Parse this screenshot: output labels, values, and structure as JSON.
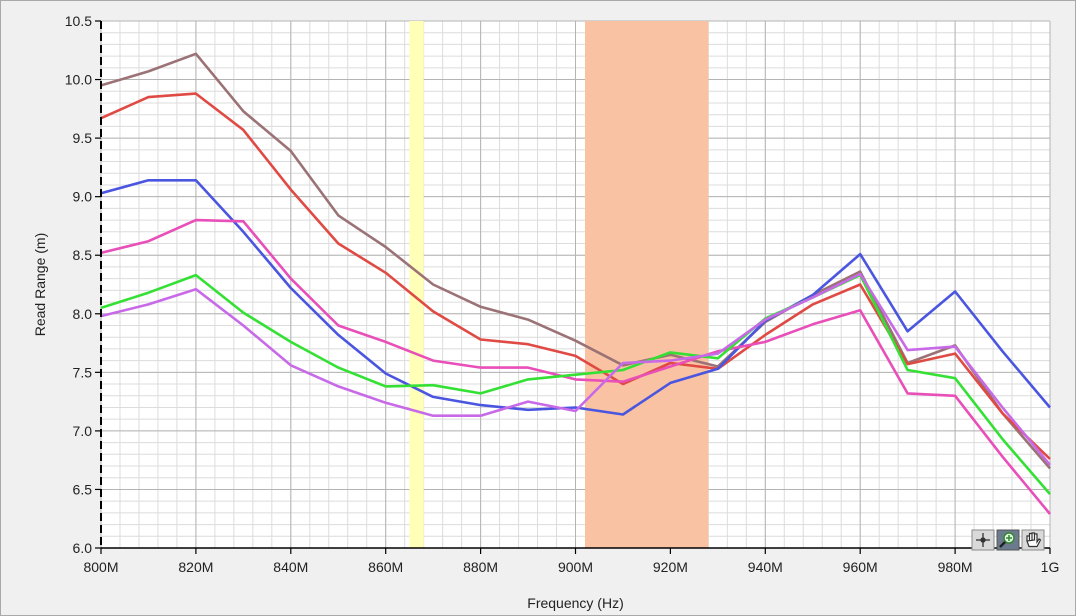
{
  "chart_data": {
    "type": "line",
    "xlabel": "Frequency (Hz)",
    "ylabel": "Read Range (m)",
    "xlim": [
      800,
      1000
    ],
    "ylim": [
      6.0,
      10.5
    ],
    "x_tick_values": [
      800,
      820,
      840,
      860,
      880,
      900,
      920,
      940,
      960,
      980,
      1000
    ],
    "x_tick_labels": [
      "800M",
      "820M",
      "840M",
      "860M",
      "880M",
      "900M",
      "920M",
      "940M",
      "960M",
      "980M",
      "1G"
    ],
    "y_tick_values": [
      6.0,
      6.5,
      7.0,
      7.5,
      8.0,
      8.5,
      9.0,
      9.5,
      10.0,
      10.5
    ],
    "y_tick_labels": [
      "6.0",
      "6.5",
      "7.0",
      "7.5",
      "8.0",
      "8.5",
      "9.0",
      "9.5",
      "10.0",
      "10.5"
    ],
    "grid": true,
    "bands": [
      {
        "x_from": 865,
        "x_to": 868,
        "color": "#ffffb8"
      },
      {
        "x_from": 902,
        "x_to": 928,
        "color": "#f9c3a3"
      }
    ],
    "x": [
      800,
      810,
      820,
      830,
      840,
      850,
      860,
      870,
      880,
      890,
      900,
      910,
      920,
      930,
      940,
      950,
      960,
      970,
      980,
      990,
      1000
    ],
    "series": [
      {
        "color": "#9b7276",
        "values": [
          9.95,
          10.07,
          10.22,
          9.73,
          9.39,
          8.84,
          8.57,
          8.25,
          8.06,
          7.95,
          7.77,
          7.56,
          7.65,
          7.55,
          7.93,
          8.16,
          8.36,
          7.58,
          7.73,
          7.15,
          6.68
        ]
      },
      {
        "color": "#e04a44",
        "values": [
          9.67,
          9.85,
          9.88,
          9.57,
          9.06,
          8.6,
          8.35,
          8.02,
          7.78,
          7.74,
          7.64,
          7.4,
          7.58,
          7.53,
          7.82,
          8.08,
          8.25,
          7.57,
          7.66,
          7.15,
          6.76
        ]
      },
      {
        "color": "#4a55e0",
        "values": [
          9.03,
          9.14,
          9.14,
          8.7,
          8.22,
          7.82,
          7.49,
          7.29,
          7.22,
          7.18,
          7.2,
          7.14,
          7.41,
          7.53,
          7.94,
          8.16,
          8.51,
          7.85,
          8.19,
          7.68,
          7.2
        ]
      },
      {
        "color": "#e84fb8",
        "values": [
          8.52,
          8.62,
          8.8,
          8.79,
          8.3,
          7.9,
          7.76,
          7.6,
          7.54,
          7.54,
          7.44,
          7.42,
          7.55,
          7.68,
          7.76,
          7.91,
          8.03,
          7.32,
          7.3,
          6.78,
          6.29
        ]
      },
      {
        "color": "#35e035",
        "values": [
          8.05,
          8.18,
          8.33,
          8.01,
          7.76,
          7.54,
          7.38,
          7.39,
          7.32,
          7.44,
          7.48,
          7.52,
          7.67,
          7.62,
          7.96,
          8.14,
          8.33,
          7.52,
          7.45,
          6.93,
          6.46
        ]
      },
      {
        "color": "#c86ae8",
        "values": [
          7.98,
          8.08,
          8.21,
          7.9,
          7.56,
          7.38,
          7.24,
          7.13,
          7.13,
          7.25,
          7.17,
          7.58,
          7.6,
          7.66,
          7.95,
          8.14,
          8.34,
          7.69,
          7.72,
          7.2,
          6.71
        ]
      }
    ]
  },
  "graph_palette": {
    "tools": [
      "crosshair-cursor",
      "zoom-magnifier",
      "pan-hand"
    ]
  }
}
